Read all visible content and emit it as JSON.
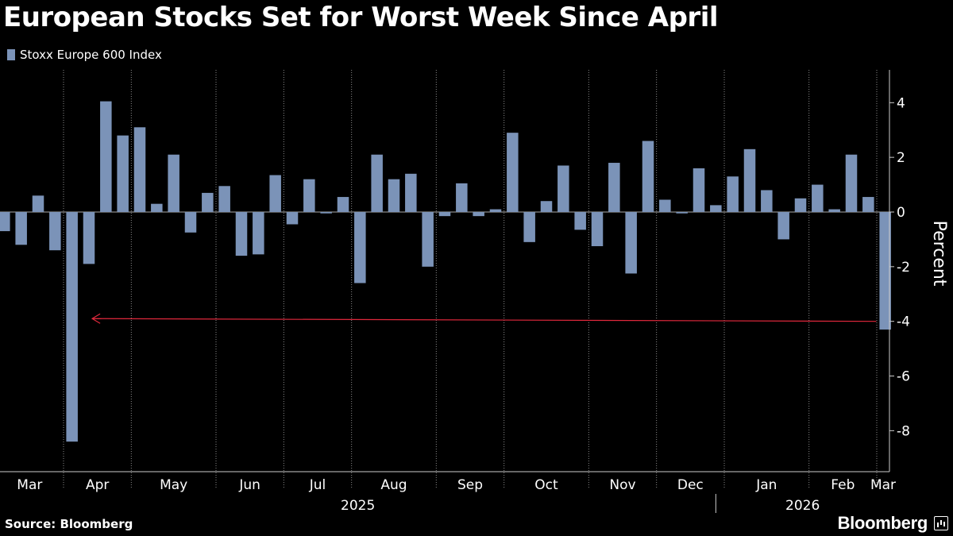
{
  "title": "European Stocks Set for Worst Week Since April",
  "legend": {
    "label": "Stoxx Europe 600 Index",
    "color": "#7b93b8"
  },
  "source": "Source: Bloomberg",
  "brand": "Bloomberg",
  "chart_data": {
    "type": "bar",
    "title": "European Stocks Set for Worst Week Since April",
    "ylabel": "Percent",
    "ylim": [
      -9.5,
      5.2
    ],
    "yticks": [
      4,
      2,
      0,
      -2,
      -4,
      -6,
      -8
    ],
    "ytick_labels": [
      "4",
      "2",
      "0",
      "-2",
      "-4",
      "-6",
      "-8"
    ],
    "bar_color": "#7b93b8",
    "series": [
      {
        "name": "Stoxx Europe 600 Index",
        "values": [
          -0.7,
          -1.2,
          0.6,
          -1.4,
          -8.4,
          -1.9,
          4.05,
          2.8,
          3.1,
          0.3,
          2.1,
          -0.75,
          0.7,
          0.95,
          -1.6,
          -1.55,
          1.35,
          -0.45,
          1.2,
          -0.05,
          0.55,
          -2.6,
          2.1,
          1.2,
          1.4,
          -2.0,
          -0.15,
          1.05,
          -0.15,
          0.1,
          2.9,
          -1.1,
          0.4,
          1.7,
          -0.65,
          -1.25,
          1.8,
          -2.25,
          2.6,
          0.45,
          -0.05,
          1.6,
          0.25,
          1.3,
          2.3,
          0.8,
          -1.0,
          0.5,
          1.0,
          0.1,
          2.1,
          0.55,
          -4.3
        ]
      }
    ],
    "months": [
      {
        "label": "Mar",
        "start": -0.5
      },
      {
        "label": "Apr",
        "start": 3.5
      },
      {
        "label": "May",
        "start": 7.5
      },
      {
        "label": "Jun",
        "start": 12.5
      },
      {
        "label": "Jul",
        "start": 16.5
      },
      {
        "label": "Aug",
        "start": 20.5
      },
      {
        "label": "Sep",
        "start": 25.5
      },
      {
        "label": "Oct",
        "start": 29.5
      },
      {
        "label": "Nov",
        "start": 34.5
      },
      {
        "label": "Dec",
        "start": 38.5
      },
      {
        "label": "Jan",
        "start": 42.5
      },
      {
        "label": "Feb",
        "start": 47.5
      },
      {
        "label": "Mar",
        "start": 51.5
      }
    ],
    "years": [
      {
        "label": "2025",
        "from": -0.5,
        "to": 42.0
      },
      {
        "label": "2026",
        "from": 42.0,
        "to": 52.5
      }
    ],
    "annotation": {
      "type": "arrow",
      "color": "#e0283c",
      "from_index": 52,
      "to_index": 6,
      "y": -4.0,
      "y_end": -3.9
    }
  }
}
